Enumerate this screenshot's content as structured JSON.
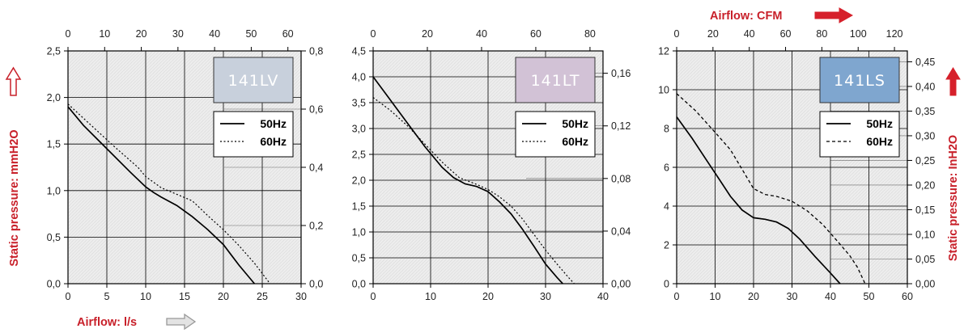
{
  "annotations": {
    "airflow_ls": "Airflow: l/s",
    "airflow_cfm": "Airflow: CFM",
    "static_pressure_mmh2o": "Static pressure: mmH2O",
    "static_pressure_inh2o": "Static pressure: InH2O"
  },
  "colors": {
    "annotation_red": "#c8202a",
    "arrow_outline_gray": "#999999",
    "arrow_fill_red": "#d6202b",
    "plot_bg": "#eeeeee",
    "grid": "#000000"
  },
  "chart_data": [
    {
      "type": "line",
      "model": "141LV",
      "model_box_color": "#c8d0dc",
      "xlim": [
        0,
        30
      ],
      "x_ticks": [
        "0",
        "5",
        "10",
        "15",
        "20",
        "25",
        "30"
      ],
      "ylim": [
        0,
        2.5
      ],
      "y_ticks": [
        "0,0",
        "0,5",
        "1,0",
        "1,5",
        "2,0",
        "2,5"
      ],
      "top_axis": {
        "lim": [
          0,
          63.6
        ],
        "ticks": [
          0,
          10,
          20,
          30,
          40,
          50,
          60
        ],
        "labels": [
          "0",
          "10",
          "20",
          "30",
          "40",
          "50",
          "60"
        ]
      },
      "right_axis": {
        "lim": [
          0,
          0.8
        ],
        "ticks": [
          0,
          0.2,
          0.4,
          0.6,
          0.8
        ],
        "labels": [
          "0,0",
          "0,2",
          "0,4",
          "0,6",
          "0,8"
        ]
      },
      "legend": {
        "position": "upper-right",
        "entries": [
          "50Hz",
          "60Hz"
        ]
      },
      "series": [
        {
          "name": "50Hz",
          "style": "solid",
          "x": [
            0,
            2,
            5,
            8,
            10,
            11,
            12,
            14,
            16,
            18,
            20,
            21,
            22,
            23,
            24
          ],
          "y": [
            1.9,
            1.7,
            1.45,
            1.2,
            1.04,
            0.98,
            0.93,
            0.84,
            0.72,
            0.58,
            0.42,
            0.31,
            0.2,
            0.1,
            0.0
          ]
        },
        {
          "name": "60Hz",
          "style": "dotted",
          "x": [
            0,
            3,
            6,
            9,
            10,
            11,
            12,
            14,
            16,
            18,
            20,
            22,
            24,
            25,
            26
          ],
          "y": [
            1.93,
            1.7,
            1.47,
            1.25,
            1.15,
            1.09,
            1.03,
            0.96,
            0.89,
            0.73,
            0.58,
            0.41,
            0.22,
            0.11,
            0.0
          ]
        }
      ]
    },
    {
      "type": "line",
      "model": "141LT",
      "model_box_color": "#d2c2d6",
      "xlim": [
        0,
        40
      ],
      "x_ticks": [
        "0",
        "10",
        "20",
        "30",
        "40"
      ],
      "ylim": [
        0,
        4.5
      ],
      "y_ticks": [
        "0,0",
        "0,5",
        "1,0",
        "1,5",
        "2,0",
        "2,5",
        "3,0",
        "3,5",
        "4,0",
        "4,5"
      ],
      "top_axis": {
        "lim": [
          0,
          84.8
        ],
        "ticks": [
          0,
          20,
          40,
          60,
          80
        ],
        "labels": [
          "0",
          "20",
          "40",
          "60",
          "80"
        ]
      },
      "right_axis": {
        "lim": [
          0,
          0.177
        ],
        "ticks": [
          0,
          0.04,
          0.08,
          0.12,
          0.16
        ],
        "labels": [
          "0,00",
          "0,04",
          "0,08",
          "0,12",
          "0,16"
        ]
      },
      "legend": {
        "position": "upper-right",
        "entries": [
          "50Hz",
          "60Hz"
        ]
      },
      "series": [
        {
          "name": "50Hz",
          "style": "solid",
          "x": [
            0,
            3,
            6,
            9,
            12,
            14,
            16,
            18,
            20,
            22,
            24,
            26,
            28,
            30,
            32,
            33
          ],
          "y": [
            4.0,
            3.55,
            3.1,
            2.65,
            2.25,
            2.05,
            1.93,
            1.88,
            1.78,
            1.58,
            1.35,
            1.05,
            0.72,
            0.38,
            0.12,
            0.0
          ]
        },
        {
          "name": "60Hz",
          "style": "dotted",
          "x": [
            0,
            3,
            6,
            9,
            12,
            15,
            18,
            20,
            22,
            24,
            26,
            28,
            30,
            32,
            34,
            35
          ],
          "y": [
            3.6,
            3.35,
            3.05,
            2.7,
            2.35,
            2.05,
            1.92,
            1.82,
            1.68,
            1.5,
            1.25,
            0.95,
            0.65,
            0.38,
            0.12,
            0.0
          ]
        }
      ]
    },
    {
      "type": "line",
      "model": "141LS",
      "model_box_color": "#7fa6cf",
      "xlim": [
        0,
        60
      ],
      "x_ticks": [
        "0",
        "10",
        "20",
        "30",
        "40",
        "50",
        "60"
      ],
      "ylim": [
        0,
        12
      ],
      "y_ticks": [
        "0",
        "2",
        "4",
        "6",
        "8",
        "10",
        "12"
      ],
      "top_axis": {
        "lim": [
          0,
          127.1
        ],
        "ticks": [
          0,
          20,
          40,
          60,
          80,
          100,
          120
        ],
        "labels": [
          "0",
          "20",
          "40",
          "60",
          "80",
          "100",
          "120"
        ]
      },
      "right_axis": {
        "lim": [
          0,
          0.472
        ],
        "ticks": [
          0,
          0.05,
          0.1,
          0.15,
          0.2,
          0.25,
          0.3,
          0.35,
          0.4,
          0.45
        ],
        "labels": [
          "0,00",
          "0,05",
          "0,10",
          "0,15",
          "0,20",
          "0,25",
          "0,30",
          "0,35",
          "0,40",
          "0,45"
        ]
      },
      "legend": {
        "position": "upper-right",
        "entries": [
          "50Hz",
          "60Hz"
        ]
      },
      "series": [
        {
          "name": "50Hz",
          "style": "solid",
          "x": [
            0,
            4,
            8,
            11,
            14,
            17,
            20,
            23,
            26,
            29,
            32,
            36,
            40,
            42.5
          ],
          "y": [
            8.6,
            7.5,
            6.3,
            5.4,
            4.5,
            3.8,
            3.4,
            3.32,
            3.18,
            2.85,
            2.3,
            1.4,
            0.55,
            0.0
          ]
        },
        {
          "name": "60Hz",
          "style": "dashed",
          "x": [
            0,
            5,
            10,
            14,
            17,
            20,
            23,
            26,
            30,
            34,
            38,
            42,
            45,
            47,
            49
          ],
          "y": [
            9.8,
            8.9,
            7.8,
            6.9,
            5.9,
            4.9,
            4.6,
            4.5,
            4.25,
            3.75,
            3.05,
            2.15,
            1.45,
            0.85,
            0.0
          ]
        }
      ]
    }
  ]
}
